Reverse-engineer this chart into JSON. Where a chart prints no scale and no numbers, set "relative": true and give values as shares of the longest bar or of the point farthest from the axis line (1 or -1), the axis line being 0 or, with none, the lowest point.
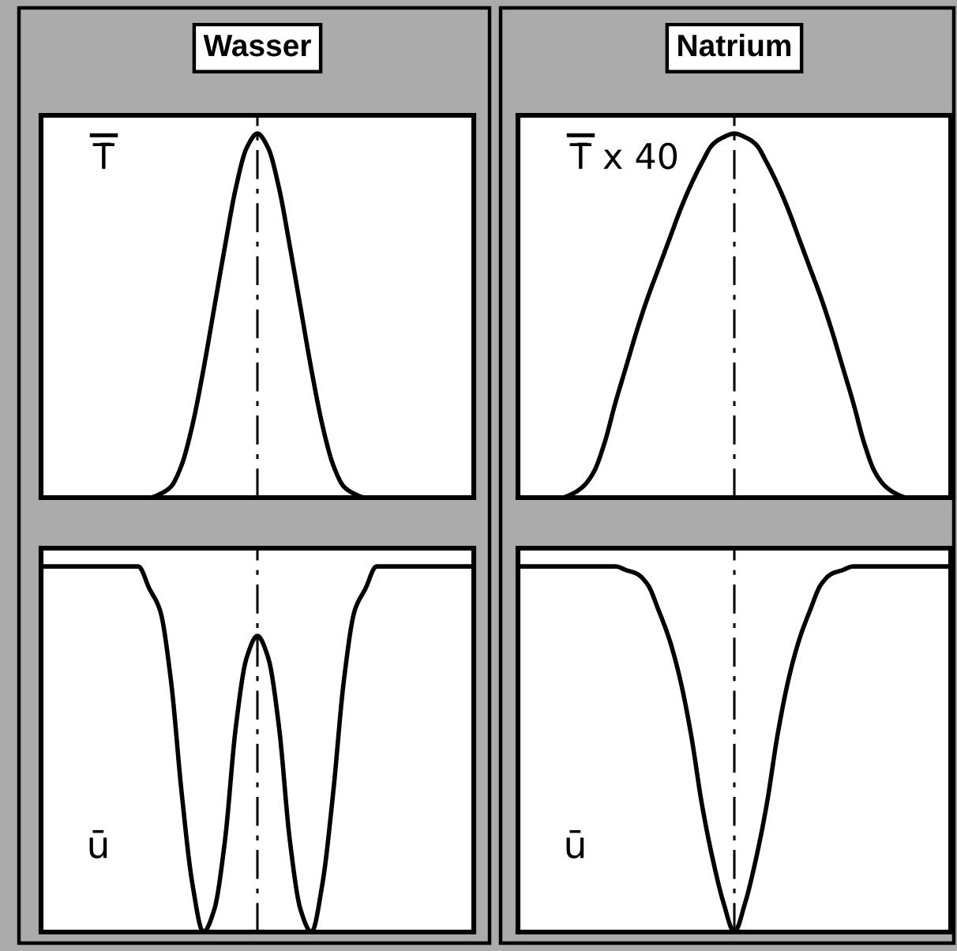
{
  "chart_data": [
    {
      "type": "line",
      "title": "Wasser",
      "ylabel": "T̄",
      "relative": true,
      "tick_labels": false,
      "categories": [
        null,
        null,
        null,
        null,
        null,
        null,
        null,
        null,
        null,
        null,
        null,
        null,
        null,
        null,
        null,
        null,
        null,
        null,
        null,
        null,
        null,
        null,
        null,
        null,
        null,
        null,
        null,
        null,
        null,
        null,
        null,
        null,
        null,
        null,
        null,
        null,
        null,
        null,
        null,
        null,
        null
      ],
      "color": "#000000",
      "values": [
        0,
        0,
        0,
        0,
        0,
        0,
        0,
        0,
        0,
        0,
        0,
        0.01,
        0.03,
        0.09,
        0.2,
        0.35,
        0.52,
        0.69,
        0.85,
        0.96,
        1,
        0.96,
        0.85,
        0.69,
        0.52,
        0.35,
        0.2,
        0.09,
        0.03,
        0.01,
        0,
        0,
        0,
        0,
        0,
        0,
        0,
        0,
        0,
        0,
        0
      ]
    },
    {
      "type": "line",
      "title": "Natrium",
      "ylabel": "T̄ x 40",
      "relative": true,
      "tick_labels": false,
      "categories": [
        null,
        null,
        null,
        null,
        null,
        null,
        null,
        null,
        null,
        null,
        null,
        null,
        null,
        null,
        null,
        null,
        null,
        null,
        null,
        null,
        null,
        null,
        null,
        null,
        null,
        null,
        null,
        null,
        null,
        null,
        null,
        null,
        null,
        null,
        null,
        null,
        null,
        null,
        null,
        null,
        null
      ],
      "color": "#000000",
      "values": [
        0,
        0,
        0,
        0,
        0,
        0.01,
        0.03,
        0.07,
        0.15,
        0.26,
        0.36,
        0.46,
        0.55,
        0.63,
        0.71,
        0.79,
        0.86,
        0.92,
        0.97,
        0.99,
        1,
        0.99,
        0.97,
        0.92,
        0.86,
        0.79,
        0.71,
        0.63,
        0.55,
        0.46,
        0.36,
        0.26,
        0.15,
        0.07,
        0.03,
        0.01,
        0,
        0,
        0,
        0,
        0
      ]
    },
    {
      "type": "line",
      "ylabel": "ū",
      "relative": true,
      "tick_labels": false,
      "categories": [
        null,
        null,
        null,
        null,
        null,
        null,
        null,
        null,
        null,
        null,
        null,
        null,
        null,
        null,
        null,
        null,
        null,
        null,
        null,
        null,
        null,
        null,
        null,
        null,
        null,
        null,
        null,
        null,
        null,
        null,
        null,
        null,
        null,
        null,
        null,
        null,
        null,
        null,
        null,
        null,
        null
      ],
      "color": "#000000",
      "values": [
        1,
        1,
        1,
        1,
        1,
        1,
        1,
        1,
        1,
        1,
        0.94,
        0.88,
        0.69,
        0.38,
        0.13,
        0,
        0.06,
        0.25,
        0.56,
        0.75,
        0.81,
        0.75,
        0.56,
        0.25,
        0.06,
        0,
        0.13,
        0.38,
        0.69,
        0.88,
        0.94,
        1,
        1,
        1,
        1,
        1,
        1,
        1,
        1,
        1,
        1
      ]
    },
    {
      "type": "line",
      "ylabel": "ū",
      "relative": true,
      "tick_labels": false,
      "categories": [
        null,
        null,
        null,
        null,
        null,
        null,
        null,
        null,
        null,
        null,
        null,
        null,
        null,
        null,
        null,
        null,
        null,
        null,
        null,
        null,
        null,
        null,
        null,
        null,
        null,
        null,
        null,
        null,
        null,
        null,
        null,
        null,
        null,
        null,
        null,
        null,
        null,
        null,
        null,
        null,
        null
      ],
      "color": "#000000",
      "values": [
        1,
        1,
        1,
        1,
        1,
        1,
        1,
        1,
        1,
        1,
        0.99,
        0.98,
        0.95,
        0.88,
        0.8,
        0.69,
        0.54,
        0.35,
        0.2,
        0.08,
        0,
        0.08,
        0.2,
        0.35,
        0.54,
        0.69,
        0.8,
        0.88,
        0.95,
        0.98,
        0.99,
        1,
        1,
        1,
        1,
        1,
        1,
        1,
        1,
        1,
        1
      ]
    }
  ]
}
